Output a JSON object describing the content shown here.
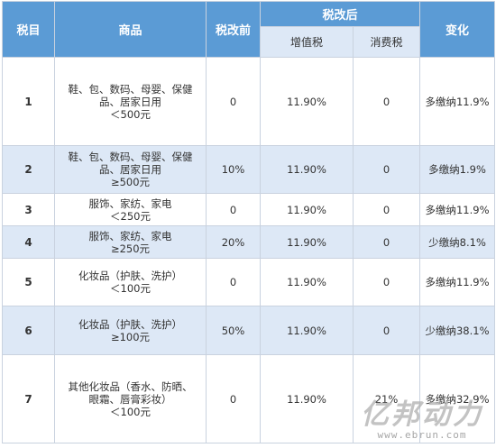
{
  "table": {
    "headers": {
      "tax_id": "税目",
      "product": "商品",
      "before": "税改前",
      "after": "税改后",
      "vat": "增值税",
      "consumption": "消费税",
      "change": "变化"
    },
    "rows": [
      {
        "id": "1",
        "product_lines": [
          "鞋、包、数码、母婴、保健",
          "品、居家日用",
          "＜500元"
        ],
        "before": "0",
        "vat": "11.90%",
        "consumption": "0",
        "change": "多缴纳11.9%"
      },
      {
        "id": "2",
        "product_lines": [
          "鞋、包、数码、母婴、保健",
          "品、居家日用",
          "≥500元"
        ],
        "before": "10%",
        "vat": "11.90%",
        "consumption": "0",
        "change": "多缴纳1.9%"
      },
      {
        "id": "3",
        "product_lines": [
          "服饰、家纺、家电",
          "＜250元"
        ],
        "before": "0",
        "vat": "11.90%",
        "consumption": "0",
        "change": "多缴纳11.9%"
      },
      {
        "id": "4",
        "product_lines": [
          "服饰、家纺、家电",
          "≥250元"
        ],
        "before": "20%",
        "vat": "11.90%",
        "consumption": "0",
        "change": "少缴纳8.1%"
      },
      {
        "id": "5",
        "product_lines": [
          "化妆品（护肤、洗护）",
          "＜100元"
        ],
        "before": "0",
        "vat": "11.90%",
        "consumption": "0",
        "change": "多缴纳11.9%"
      },
      {
        "id": "6",
        "product_lines": [
          "化妆品（护肤、洗护）",
          "≥100元"
        ],
        "before": "50%",
        "vat": "11.90%",
        "consumption": "0",
        "change": "少缴纳38.1%"
      },
      {
        "id": "7",
        "product_lines": [
          "其他化妆品（香水、防晒、",
          "眼霜、唇膏彩妆）",
          "＜100元"
        ],
        "before": "0",
        "vat": "11.90%",
        "consumption": "21%",
        "change": "多缴纳32.9%"
      }
    ]
  },
  "watermark": {
    "brand": "亿邦动力",
    "url": "www.ebrun.com"
  }
}
